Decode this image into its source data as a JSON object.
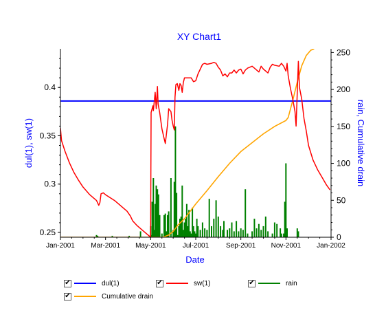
{
  "chart_data": {
    "type": "line",
    "title": "XY Chart1",
    "xlabel": "Date",
    "ylabel_left": "dul(1), sw(1)",
    "ylabel_right": "rain, Cumulative drain",
    "colors": {
      "title": "#0000ff",
      "axis_labels": "#0000ff",
      "dul": "#0000ff",
      "sw": "#ff0000",
      "rain": "#008000",
      "drain": "#ffa500"
    },
    "xlim_month": [
      0,
      12
    ],
    "ylim_left": [
      0.245,
      0.44
    ],
    "ylim_right": [
      0,
      255
    ],
    "x_ticks": [
      {
        "month": 0,
        "label": "Jan-2001"
      },
      {
        "month": 2,
        "label": "Mar-2001"
      },
      {
        "month": 4,
        "label": "May-2001"
      },
      {
        "month": 6,
        "label": "Jul-2001"
      },
      {
        "month": 8,
        "label": "Sep-2001"
      },
      {
        "month": 10,
        "label": "Nov-2001"
      },
      {
        "month": 12,
        "label": "Jan-2002"
      }
    ],
    "y_ticks_left": [
      "0.25",
      "0.3",
      "0.35",
      "0.4"
    ],
    "y_ticks_right": [
      "0",
      "50",
      "100",
      "150",
      "200",
      "250"
    ],
    "series": [
      {
        "name": "dul(1)",
        "axis": "left",
        "points": [
          [
            0,
            0.386
          ],
          [
            12,
            0.386
          ]
        ]
      },
      {
        "name": "sw(1)",
        "axis": "left",
        "points": [
          [
            0.0,
            0.358
          ],
          [
            0.05,
            0.345
          ],
          [
            0.2,
            0.334
          ],
          [
            0.4,
            0.322
          ],
          [
            0.6,
            0.312
          ],
          [
            0.8,
            0.304
          ],
          [
            1.0,
            0.297
          ],
          [
            1.3,
            0.289
          ],
          [
            1.6,
            0.283
          ],
          [
            1.7,
            0.278
          ],
          [
            1.75,
            0.281
          ],
          [
            1.8,
            0.29
          ],
          [
            1.9,
            0.291
          ],
          [
            2.0,
            0.289
          ],
          [
            2.2,
            0.286
          ],
          [
            2.4,
            0.283
          ],
          [
            2.6,
            0.279
          ],
          [
            2.8,
            0.275
          ],
          [
            2.95,
            0.272
          ],
          [
            3.1,
            0.267
          ],
          [
            3.2,
            0.262
          ],
          [
            3.4,
            0.257
          ],
          [
            3.6,
            0.253
          ],
          [
            3.8,
            0.249
          ],
          [
            3.95,
            0.246
          ],
          [
            4.0,
            0.246
          ],
          [
            4.02,
            0.374
          ],
          [
            4.1,
            0.381
          ],
          [
            4.12,
            0.376
          ],
          [
            4.2,
            0.395
          ],
          [
            4.25,
            0.378
          ],
          [
            4.3,
            0.401
          ],
          [
            4.33,
            0.383
          ],
          [
            4.4,
            0.374
          ],
          [
            4.5,
            0.357
          ],
          [
            4.6,
            0.347
          ],
          [
            4.65,
            0.342
          ],
          [
            4.75,
            0.362
          ],
          [
            4.8,
            0.378
          ],
          [
            4.9,
            0.375
          ],
          [
            4.95,
            0.366
          ],
          [
            5.0,
            0.36
          ],
          [
            5.05,
            0.356
          ],
          [
            5.08,
            0.39
          ],
          [
            5.12,
            0.403
          ],
          [
            5.18,
            0.404
          ],
          [
            5.25,
            0.397
          ],
          [
            5.3,
            0.404
          ],
          [
            5.35,
            0.402
          ],
          [
            5.4,
            0.395
          ],
          [
            5.45,
            0.405
          ],
          [
            5.5,
            0.41
          ],
          [
            5.6,
            0.41
          ],
          [
            5.7,
            0.41
          ],
          [
            5.8,
            0.41
          ],
          [
            5.9,
            0.406
          ],
          [
            6.0,
            0.407
          ],
          [
            6.1,
            0.414
          ],
          [
            6.2,
            0.419
          ],
          [
            6.3,
            0.424
          ],
          [
            6.4,
            0.425
          ],
          [
            6.5,
            0.424
          ],
          [
            6.7,
            0.425
          ],
          [
            6.8,
            0.426
          ],
          [
            6.9,
            0.425
          ],
          [
            7.0,
            0.421
          ],
          [
            7.1,
            0.418
          ],
          [
            7.2,
            0.412
          ],
          [
            7.3,
            0.414
          ],
          [
            7.4,
            0.411
          ],
          [
            7.5,
            0.415
          ],
          [
            7.6,
            0.415
          ],
          [
            7.7,
            0.418
          ],
          [
            7.8,
            0.415
          ],
          [
            7.9,
            0.418
          ],
          [
            8.0,
            0.419
          ],
          [
            8.1,
            0.414
          ],
          [
            8.2,
            0.418
          ],
          [
            8.3,
            0.42
          ],
          [
            8.5,
            0.422
          ],
          [
            8.6,
            0.42
          ],
          [
            8.8,
            0.416
          ],
          [
            8.9,
            0.422
          ],
          [
            9.0,
            0.419
          ],
          [
            9.2,
            0.415
          ],
          [
            9.3,
            0.421
          ],
          [
            9.4,
            0.424
          ],
          [
            9.5,
            0.423
          ],
          [
            9.7,
            0.422
          ],
          [
            9.8,
            0.425
          ],
          [
            9.9,
            0.422
          ],
          [
            10.0,
            0.417
          ],
          [
            10.05,
            0.425
          ],
          [
            10.1,
            0.412
          ],
          [
            10.2,
            0.399
          ],
          [
            10.3,
            0.388
          ],
          [
            10.4,
            0.375
          ],
          [
            10.45,
            0.36
          ],
          [
            10.5,
            0.395
          ],
          [
            10.55,
            0.427
          ],
          [
            10.6,
            0.4
          ],
          [
            10.7,
            0.388
          ],
          [
            10.8,
            0.368
          ],
          [
            10.9,
            0.355
          ],
          [
            11.0,
            0.34
          ],
          [
            11.2,
            0.325
          ],
          [
            11.4,
            0.315
          ],
          [
            11.6,
            0.307
          ],
          [
            11.8,
            0.299
          ],
          [
            11.95,
            0.294
          ]
        ]
      },
      {
        "name": "rain",
        "axis": "right",
        "bars": [
          [
            1.6,
            3
          ],
          [
            1.65,
            2
          ],
          [
            2.3,
            2
          ],
          [
            3.05,
            2
          ],
          [
            3.55,
            8
          ],
          [
            4.0,
            15
          ],
          [
            4.05,
            3
          ],
          [
            4.07,
            48
          ],
          [
            4.12,
            80
          ],
          [
            4.15,
            10
          ],
          [
            4.2,
            45
          ],
          [
            4.25,
            70
          ],
          [
            4.3,
            65
          ],
          [
            4.35,
            58
          ],
          [
            4.4,
            30
          ],
          [
            4.5,
            5
          ],
          [
            4.6,
            30
          ],
          [
            4.65,
            32
          ],
          [
            4.7,
            8
          ],
          [
            4.75,
            30
          ],
          [
            4.8,
            35
          ],
          [
            4.9,
            80
          ],
          [
            5.0,
            10
          ],
          [
            5.05,
            75
          ],
          [
            5.08,
            65
          ],
          [
            5.1,
            150
          ],
          [
            5.12,
            45
          ],
          [
            5.15,
            60
          ],
          [
            5.2,
            3
          ],
          [
            5.25,
            15
          ],
          [
            5.3,
            25
          ],
          [
            5.35,
            28
          ],
          [
            5.4,
            70
          ],
          [
            5.45,
            10
          ],
          [
            5.5,
            20
          ],
          [
            5.55,
            25
          ],
          [
            5.6,
            45
          ],
          [
            5.65,
            15
          ],
          [
            5.7,
            37
          ],
          [
            5.75,
            8
          ],
          [
            5.8,
            5
          ],
          [
            5.85,
            40
          ],
          [
            5.9,
            15
          ],
          [
            5.95,
            8
          ],
          [
            6.0,
            5
          ],
          [
            6.05,
            25
          ],
          [
            6.1,
            15
          ],
          [
            6.2,
            10
          ],
          [
            6.3,
            20
          ],
          [
            6.4,
            12
          ],
          [
            6.5,
            10
          ],
          [
            6.6,
            52
          ],
          [
            6.7,
            15
          ],
          [
            6.8,
            25
          ],
          [
            6.9,
            50
          ],
          [
            7.0,
            28
          ],
          [
            7.1,
            15
          ],
          [
            7.2,
            10
          ],
          [
            7.25,
            22
          ],
          [
            7.4,
            10
          ],
          [
            7.5,
            12
          ],
          [
            7.6,
            20
          ],
          [
            7.7,
            8
          ],
          [
            7.8,
            22
          ],
          [
            7.9,
            8
          ],
          [
            8.0,
            12
          ],
          [
            8.1,
            10
          ],
          [
            8.2,
            65
          ],
          [
            8.3,
            5
          ],
          [
            8.5,
            8
          ],
          [
            8.6,
            25
          ],
          [
            8.7,
            12
          ],
          [
            8.8,
            18
          ],
          [
            8.9,
            10
          ],
          [
            9.0,
            15
          ],
          [
            9.1,
            28
          ],
          [
            9.2,
            8
          ],
          [
            9.4,
            5
          ],
          [
            9.5,
            20
          ],
          [
            9.6,
            18
          ],
          [
            9.75,
            12
          ],
          [
            9.8,
            5
          ],
          [
            9.9,
            5
          ],
          [
            9.95,
            48
          ],
          [
            10.0,
            100
          ],
          [
            10.05,
            12
          ],
          [
            10.5,
            12
          ],
          [
            10.55,
            8
          ]
        ]
      },
      {
        "name": "Cumulative drain",
        "axis": "right",
        "points": [
          [
            0,
            0
          ],
          [
            4.55,
            0
          ],
          [
            4.8,
            3
          ],
          [
            5.0,
            8
          ],
          [
            5.2,
            16
          ],
          [
            5.5,
            25
          ],
          [
            6.0,
            45
          ],
          [
            6.5,
            63
          ],
          [
            7.0,
            82
          ],
          [
            7.5,
            100
          ],
          [
            8.0,
            116
          ],
          [
            8.5,
            128
          ],
          [
            9.0,
            140
          ],
          [
            9.5,
            150
          ],
          [
            10.0,
            158
          ],
          [
            10.1,
            162
          ],
          [
            10.3,
            185
          ],
          [
            10.5,
            210
          ],
          [
            10.7,
            232
          ],
          [
            10.9,
            246
          ],
          [
            11.1,
            253
          ],
          [
            11.25,
            255
          ]
        ]
      }
    ],
    "legend": [
      {
        "name": "dul(1)",
        "checked": true
      },
      {
        "name": "sw(1)",
        "checked": true
      },
      {
        "name": "rain",
        "checked": true
      },
      {
        "name": "Cumulative drain",
        "checked": true
      }
    ]
  }
}
